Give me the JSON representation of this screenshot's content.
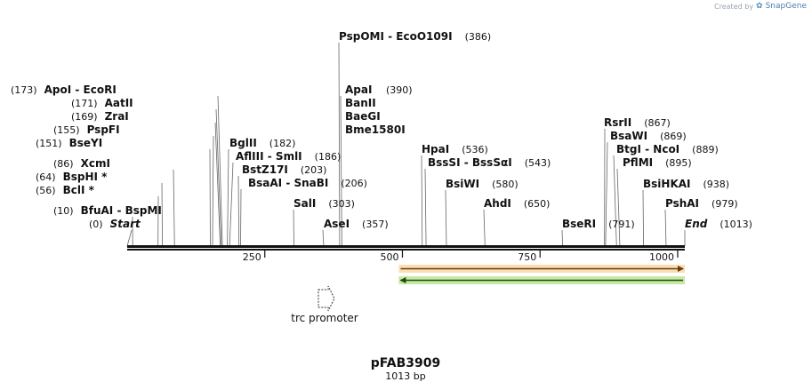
{
  "branding": {
    "created_by": "Created by",
    "product": "SnapGene",
    "logo_icon": "snapgene-logo-icon"
  },
  "plasmid": {
    "name": "pFAB3909",
    "length": "1013 bp"
  },
  "sequence_ruler": {
    "ticks": [
      {
        "pos": 250,
        "label": "250"
      },
      {
        "pos": 500,
        "label": "500"
      },
      {
        "pos": 750,
        "label": "750"
      },
      {
        "pos": 1000,
        "label": "1000"
      }
    ]
  },
  "features": [
    {
      "name": "trc promoter",
      "type": "promoter",
      "icon": "promoter-arrow-icon"
    },
    {
      "name": "",
      "type": "arrow-forward",
      "start": 500,
      "end": 1013,
      "color": "#f0a030"
    },
    {
      "name": "",
      "type": "arrow-reverse",
      "start": 500,
      "end": 1013,
      "color": "#8ed44a"
    }
  ],
  "sites": [
    {
      "pos": 0,
      "names": [
        "Start"
      ],
      "num": "(0)",
      "italic": true
    },
    {
      "pos": 10,
      "names": [
        "BfuAI",
        "BspMI"
      ],
      "num": "(10)"
    },
    {
      "pos": 56,
      "names": [
        "BclI *"
      ],
      "num": "(56)"
    },
    {
      "pos": 64,
      "names": [
        "BspHI *"
      ],
      "num": "(64)"
    },
    {
      "pos": 86,
      "names": [
        "XcmI"
      ],
      "num": "(86)"
    },
    {
      "pos": 151,
      "names": [
        "BseYI"
      ],
      "num": "(151)"
    },
    {
      "pos": 155,
      "names": [
        "PspFI"
      ],
      "num": "(155)"
    },
    {
      "pos": 169,
      "names": [
        "ZraI"
      ],
      "num": "(169)"
    },
    {
      "pos": 171,
      "names": [
        "AatII"
      ],
      "num": "(171)"
    },
    {
      "pos": 173,
      "names": [
        "ApoI",
        "EcoRI"
      ],
      "num": "(173)"
    },
    {
      "pos": 182,
      "names": [
        "BglII"
      ],
      "num": "(182)"
    },
    {
      "pos": 186,
      "names": [
        "AflIII",
        "SmlI"
      ],
      "num": "(186)"
    },
    {
      "pos": 203,
      "names": [
        "BstZ17I"
      ],
      "num": "(203)"
    },
    {
      "pos": 206,
      "names": [
        "BsaAI",
        "SnaBI"
      ],
      "num": "(206)"
    },
    {
      "pos": 303,
      "names": [
        "SalI"
      ],
      "num": "(303)"
    },
    {
      "pos": 357,
      "names": [
        "AseI"
      ],
      "num": "(357)"
    },
    {
      "pos": 386,
      "names": [
        "PspOMI",
        "EcoO109I"
      ],
      "num": "(386)"
    },
    {
      "pos": 390,
      "names": [
        "ApaI",
        "BanII",
        "BaeGI",
        "Bme1580I"
      ],
      "num": "(390)"
    },
    {
      "pos": 536,
      "names": [
        "HpaI"
      ],
      "num": "(536)"
    },
    {
      "pos": 543,
      "names": [
        "BssSI",
        "BssSαI"
      ],
      "num": "(543)"
    },
    {
      "pos": 580,
      "names": [
        "BsiWI"
      ],
      "num": "(580)"
    },
    {
      "pos": 650,
      "names": [
        "AhdI"
      ],
      "num": "(650)"
    },
    {
      "pos": 791,
      "names": [
        "BseRI"
      ],
      "num": "(791)"
    },
    {
      "pos": 867,
      "names": [
        "RsrII"
      ],
      "num": "(867)"
    },
    {
      "pos": 869,
      "names": [
        "BsaWI"
      ],
      "num": "(869)"
    },
    {
      "pos": 889,
      "names": [
        "BtgI",
        "NcoI"
      ],
      "num": "(889)"
    },
    {
      "pos": 895,
      "names": [
        "PflMI"
      ],
      "num": "(895)"
    },
    {
      "pos": 938,
      "names": [
        "BsiHKAI"
      ],
      "num": "(938)"
    },
    {
      "pos": 979,
      "names": [
        "PshAI"
      ],
      "num": "(979)"
    },
    {
      "pos": 1013,
      "names": [
        "End"
      ],
      "num": "(1013)",
      "italic": true
    }
  ]
}
